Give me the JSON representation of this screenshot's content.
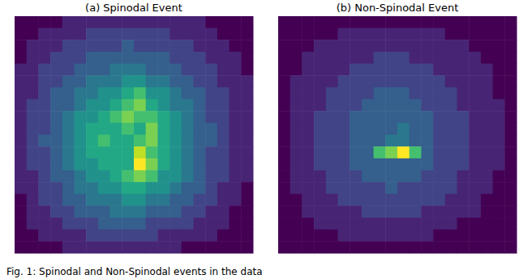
{
  "chart_data": [
    {
      "type": "heatmap",
      "title": "(a) Spinodal Event",
      "tick_labels": false,
      "zlim": [
        0,
        10
      ],
      "cells": [
        [
          0,
          0,
          0,
          0,
          1,
          1,
          1,
          1,
          1,
          1,
          1,
          1,
          1,
          1,
          1,
          1,
          0,
          0,
          0,
          0
        ],
        [
          0,
          0,
          1,
          1,
          1,
          1,
          2,
          2,
          2,
          2,
          2,
          2,
          2,
          1,
          1,
          1,
          1,
          0,
          0,
          0
        ],
        [
          0,
          1,
          1,
          1,
          2,
          2,
          2,
          2,
          2,
          3,
          2,
          2,
          2,
          2,
          2,
          1,
          1,
          1,
          0,
          0
        ],
        [
          0,
          1,
          1,
          2,
          2,
          2,
          3,
          3,
          3,
          3,
          3,
          3,
          3,
          2,
          2,
          2,
          1,
          1,
          1,
          0
        ],
        [
          1,
          1,
          2,
          2,
          2,
          3,
          3,
          3,
          4,
          4,
          4,
          3,
          3,
          3,
          2,
          2,
          2,
          1,
          1,
          0
        ],
        [
          1,
          1,
          2,
          2,
          3,
          3,
          4,
          4,
          4,
          5,
          5,
          4,
          4,
          3,
          3,
          2,
          2,
          1,
          1,
          1
        ],
        [
          1,
          1,
          2,
          3,
          3,
          4,
          4,
          5,
          5,
          6,
          7,
          5,
          5,
          4,
          3,
          3,
          2,
          2,
          1,
          1
        ],
        [
          1,
          2,
          2,
          3,
          3,
          4,
          5,
          5,
          6,
          7,
          8,
          6,
          5,
          4,
          4,
          3,
          2,
          2,
          1,
          1
        ],
        [
          1,
          2,
          2,
          3,
          4,
          5,
          5,
          6,
          7,
          8,
          7,
          7,
          6,
          5,
          4,
          3,
          2,
          2,
          1,
          1
        ],
        [
          1,
          2,
          2,
          3,
          4,
          5,
          6,
          6,
          6,
          7,
          6,
          8,
          6,
          5,
          4,
          3,
          3,
          2,
          1,
          1
        ],
        [
          1,
          2,
          3,
          3,
          4,
          5,
          6,
          7,
          6,
          6,
          7,
          8,
          6,
          5,
          4,
          3,
          3,
          2,
          1,
          1
        ],
        [
          1,
          2,
          2,
          3,
          4,
          5,
          6,
          6,
          6,
          6,
          9,
          7,
          6,
          5,
          4,
          3,
          2,
          2,
          1,
          1
        ],
        [
          1,
          2,
          2,
          3,
          4,
          5,
          5,
          6,
          6,
          6,
          10,
          8,
          6,
          5,
          4,
          3,
          2,
          2,
          1,
          1
        ],
        [
          1,
          1,
          2,
          3,
          3,
          4,
          5,
          5,
          6,
          7,
          8,
          7,
          5,
          5,
          4,
          3,
          2,
          2,
          1,
          1
        ],
        [
          1,
          1,
          2,
          2,
          3,
          4,
          4,
          5,
          5,
          6,
          6,
          5,
          5,
          4,
          3,
          3,
          2,
          1,
          1,
          0
        ],
        [
          0,
          1,
          2,
          2,
          3,
          3,
          4,
          4,
          4,
          5,
          5,
          4,
          4,
          3,
          3,
          2,
          2,
          1,
          1,
          0
        ],
        [
          0,
          1,
          1,
          2,
          2,
          3,
          3,
          3,
          4,
          4,
          4,
          3,
          3,
          3,
          2,
          2,
          1,
          1,
          0,
          0
        ],
        [
          0,
          1,
          1,
          1,
          2,
          2,
          2,
          3,
          3,
          3,
          3,
          2,
          2,
          2,
          2,
          1,
          1,
          1,
          0,
          0
        ],
        [
          0,
          0,
          1,
          1,
          1,
          1,
          2,
          2,
          2,
          2,
          2,
          2,
          1,
          1,
          1,
          1,
          1,
          0,
          0,
          0
        ],
        [
          0,
          0,
          0,
          0,
          1,
          1,
          1,
          1,
          1,
          1,
          1,
          1,
          1,
          1,
          0,
          0,
          0,
          0,
          0,
          0
        ]
      ]
    },
    {
      "type": "heatmap",
      "title": "(b) Non-Spinodal Event",
      "tick_labels": false,
      "zlim": [
        0,
        10
      ],
      "cells": [
        [
          0,
          0,
          0,
          0,
          0,
          0,
          0,
          0,
          0,
          0,
          0,
          0,
          0,
          0,
          0,
          0,
          0,
          0,
          0,
          0
        ],
        [
          0,
          0,
          0,
          0,
          0,
          1,
          1,
          1,
          1,
          1,
          1,
          1,
          1,
          1,
          0,
          0,
          0,
          0,
          0,
          0
        ],
        [
          0,
          0,
          0,
          1,
          1,
          1,
          1,
          1,
          1,
          1,
          1,
          1,
          1,
          1,
          1,
          1,
          0,
          0,
          0,
          0
        ],
        [
          0,
          0,
          1,
          1,
          1,
          1,
          1,
          1,
          2,
          2,
          2,
          1,
          1,
          1,
          1,
          1,
          1,
          0,
          0,
          0
        ],
        [
          0,
          0,
          1,
          1,
          1,
          1,
          2,
          2,
          2,
          2,
          2,
          2,
          2,
          1,
          1,
          1,
          1,
          1,
          0,
          0
        ],
        [
          0,
          1,
          1,
          1,
          1,
          2,
          2,
          2,
          2,
          2,
          2,
          2,
          2,
          2,
          1,
          1,
          1,
          1,
          0,
          0
        ],
        [
          0,
          1,
          1,
          1,
          2,
          2,
          2,
          2,
          3,
          3,
          3,
          2,
          2,
          2,
          2,
          1,
          1,
          1,
          0,
          0
        ],
        [
          0,
          1,
          1,
          1,
          2,
          2,
          2,
          3,
          3,
          3,
          3,
          3,
          2,
          2,
          2,
          1,
          1,
          1,
          1,
          0
        ],
        [
          0,
          1,
          1,
          2,
          2,
          2,
          3,
          3,
          3,
          3,
          3,
          3,
          3,
          2,
          2,
          2,
          1,
          1,
          1,
          0
        ],
        [
          0,
          1,
          1,
          2,
          2,
          2,
          3,
          3,
          3,
          3,
          4,
          3,
          3,
          2,
          2,
          2,
          1,
          1,
          1,
          0
        ],
        [
          0,
          1,
          1,
          2,
          2,
          2,
          3,
          3,
          3,
          4,
          4,
          3,
          3,
          2,
          2,
          2,
          1,
          1,
          1,
          0
        ],
        [
          0,
          1,
          1,
          2,
          2,
          2,
          3,
          3,
          7,
          8,
          10,
          7,
          3,
          2,
          2,
          2,
          1,
          1,
          1,
          0
        ],
        [
          0,
          1,
          1,
          2,
          2,
          2,
          3,
          3,
          3,
          3,
          3,
          3,
          3,
          2,
          2,
          2,
          1,
          1,
          1,
          0
        ],
        [
          0,
          1,
          1,
          1,
          2,
          2,
          2,
          3,
          3,
          3,
          3,
          3,
          2,
          2,
          2,
          1,
          1,
          1,
          0,
          0
        ],
        [
          0,
          1,
          1,
          1,
          2,
          2,
          2,
          2,
          2,
          3,
          2,
          2,
          2,
          2,
          2,
          1,
          1,
          1,
          0,
          0
        ],
        [
          0,
          0,
          1,
          1,
          1,
          2,
          2,
          2,
          2,
          2,
          2,
          2,
          2,
          2,
          1,
          1,
          1,
          0,
          0,
          0
        ],
        [
          0,
          0,
          1,
          1,
          1,
          1,
          1,
          2,
          2,
          2,
          2,
          2,
          1,
          1,
          1,
          1,
          1,
          0,
          0,
          0
        ],
        [
          0,
          0,
          0,
          1,
          1,
          1,
          1,
          1,
          1,
          1,
          1,
          1,
          1,
          1,
          1,
          0,
          0,
          0,
          0,
          0
        ],
        [
          0,
          0,
          0,
          0,
          0,
          1,
          1,
          1,
          1,
          1,
          1,
          1,
          1,
          0,
          0,
          0,
          0,
          0,
          0,
          0
        ],
        [
          0,
          0,
          0,
          0,
          0,
          0,
          0,
          0,
          0,
          0,
          0,
          0,
          0,
          0,
          0,
          0,
          0,
          0,
          0,
          0
        ]
      ]
    }
  ],
  "caption": "Fig. 1: Spinodal and Non-Spinodal events in the data"
}
